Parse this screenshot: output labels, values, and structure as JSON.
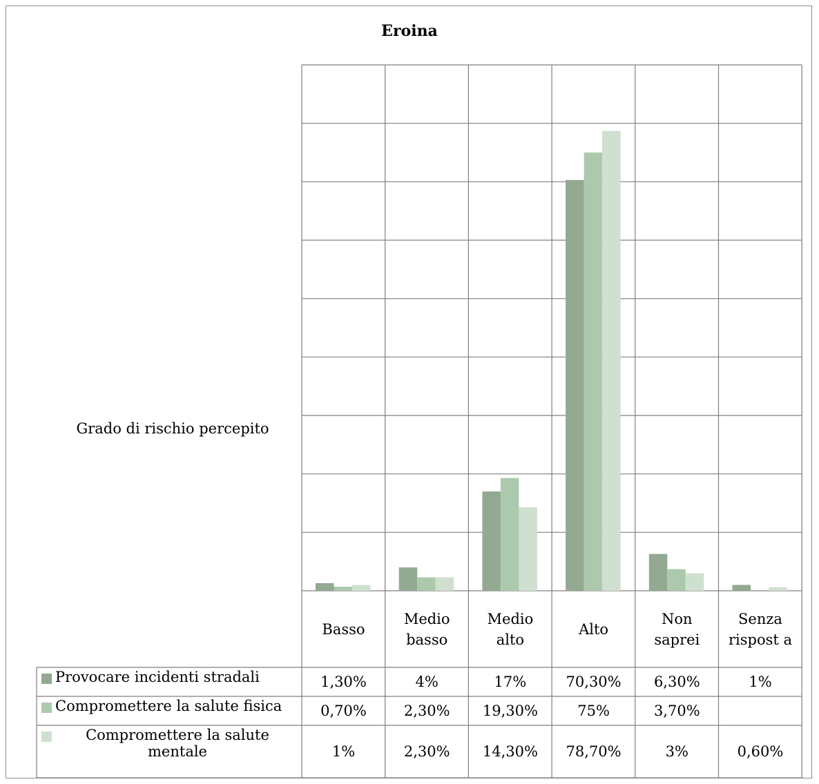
{
  "chart_data": {
    "type": "bar",
    "title": "Eroina",
    "ylabel": "Grado di rischio percepito",
    "ylim": [
      0,
      90
    ],
    "y_gridline_step": 10,
    "categories": [
      "Basso",
      "Medio basso",
      "Medio alto",
      "Alto",
      "Non saprei",
      "Senza rispost a"
    ],
    "series": [
      {
        "name": "Provocare incidenti stradali",
        "color": "#93a992",
        "values": [
          1.3,
          4,
          17,
          70.3,
          6.3,
          1
        ],
        "labels": [
          "1,30%",
          "4%",
          "17%",
          "70,30%",
          "6,30%",
          "1%"
        ]
      },
      {
        "name": "Compromettere la salute fisica",
        "color": "#adc9ad",
        "values": [
          0.7,
          2.3,
          19.3,
          75,
          3.7,
          null
        ],
        "labels": [
          "0,70%",
          "2,30%",
          "19,30%",
          "75%",
          "3,70%",
          ""
        ]
      },
      {
        "name": "Compromettere la salute mentale",
        "color": "#d0e0d0",
        "values": [
          1,
          2.3,
          14.3,
          78.7,
          3,
          0.6
        ],
        "labels": [
          "1%",
          "2,30%",
          "14,30%",
          "78,70%",
          "3%",
          "0,60%"
        ]
      }
    ],
    "legend": "data-table-left"
  }
}
